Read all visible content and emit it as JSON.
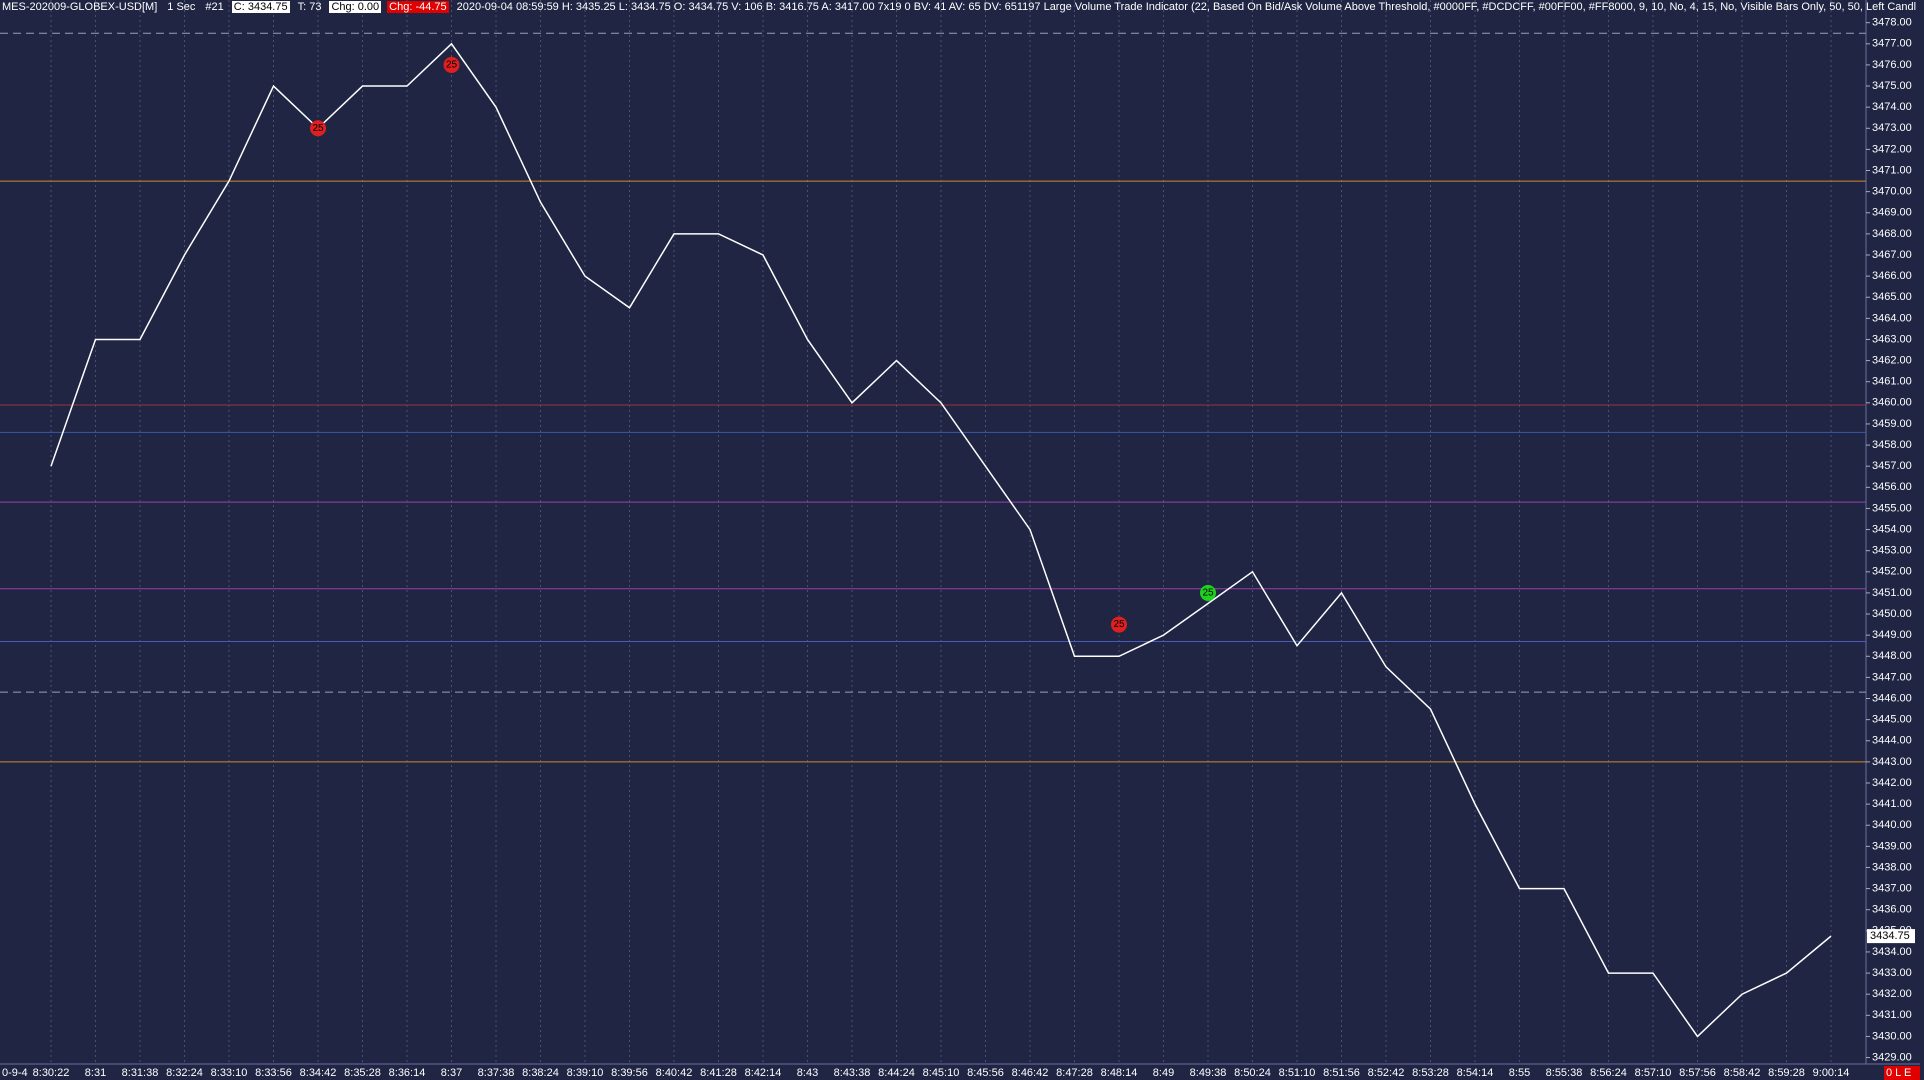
{
  "header": {
    "symbol": "MES-202009-GLOBEX-USD[M]",
    "interval": "1 Sec",
    "bar_no": "#21",
    "close": "C: 3434.75",
    "ticks": "T: 73",
    "change": "Chg: 0.00",
    "change_pct": "Chg: -44.75",
    "info": "2020-09-04 08:59:59 H: 3435.25 L: 3434.75 O: 3434.75 V: 106 B: 3416.75 A: 3417.00 7x19 0 BV: 41 AV: 65 DV: 651197 Large Volume Trade Indicator   (22, Based On Bid/Ask Volume Above Threshold, #0000FF, #DCDCFF, #00FF00, #FF8000, 9, 10, No, 4, 15, No, Visible Bars Only, 50, 50, Left Candl"
  },
  "footer": {
    "date_fragment": "0-9-4",
    "status": "0 L E"
  },
  "chart_data": {
    "type": "line",
    "x": [
      "8:30:22",
      "8:31",
      "8:31:38",
      "8:32:24",
      "8:33:10",
      "8:33:56",
      "8:34:42",
      "8:35:28",
      "8:36:14",
      "8:37",
      "8:37:38",
      "8:38:24",
      "8:39:10",
      "8:39:56",
      "8:40:42",
      "8:41:28",
      "8:42:14",
      "8:43",
      "8:43:38",
      "8:44:24",
      "8:45:10",
      "8:45:56",
      "8:46:42",
      "8:47:28",
      "8:48:14",
      "8:49",
      "8:49:38",
      "8:50:24",
      "8:51:10",
      "8:51:56",
      "8:52:42",
      "8:53:28",
      "8:54:14",
      "8:55",
      "8:55:38",
      "8:56:24",
      "8:57:10",
      "8:57:56",
      "8:58:42",
      "8:59:28",
      "9:00:14"
    ],
    "series": [
      {
        "color": "#ffffff",
        "values": [
          3457,
          3463,
          3463,
          3467,
          3470.5,
          3475,
          3473,
          3475,
          3475,
          3477,
          3474,
          3469.5,
          3466,
          3464.5,
          3468,
          3468,
          3467,
          3463,
          3460,
          3462,
          3460,
          3457,
          3454,
          3448,
          3448,
          3449,
          3450.5,
          3452,
          3448.5,
          3451,
          3447.5,
          3445.5,
          3441,
          3437,
          3437,
          3433,
          3433,
          3430,
          3432,
          3433,
          3434.75
        ]
      }
    ],
    "ylim": [
      3428.6,
      3478.6
    ],
    "yticks": [
      {
        "value": 3429,
        "label": "3429.00"
      },
      {
        "value": 3430,
        "label": "3430.00"
      },
      {
        "value": 3431,
        "label": "3431.00"
      },
      {
        "value": 3432,
        "label": "3432.00"
      },
      {
        "value": 3433,
        "label": "3433.00"
      },
      {
        "value": 3434,
        "label": "3434.00"
      },
      {
        "value": 3435,
        "label": "3435.00"
      },
      {
        "value": 3436,
        "label": "3436.00"
      },
      {
        "value": 3437,
        "label": "3437.00"
      },
      {
        "value": 3438,
        "label": "3438.00"
      },
      {
        "value": 3439,
        "label": "3439.00"
      },
      {
        "value": 3440,
        "label": "3440.00"
      },
      {
        "value": 3441,
        "label": "3441.00"
      },
      {
        "value": 3442,
        "label": "3442.00"
      },
      {
        "value": 3443,
        "label": "3443.00"
      },
      {
        "value": 3444,
        "label": "3444.00"
      },
      {
        "value": 3445,
        "label": "3445.00"
      },
      {
        "value": 3446,
        "label": "3446.00"
      },
      {
        "value": 3447,
        "label": "3447.00"
      },
      {
        "value": 3448,
        "label": "3448.00"
      },
      {
        "value": 3449,
        "label": "3449.00"
      },
      {
        "value": 3450,
        "label": "3450.00"
      },
      {
        "value": 3451,
        "label": "3451.00"
      },
      {
        "value": 3452,
        "label": "3452.00"
      },
      {
        "value": 3453,
        "label": "3453.00"
      },
      {
        "value": 3454,
        "label": "3454.00"
      },
      {
        "value": 3455,
        "label": "3455.00"
      },
      {
        "value": 3456,
        "label": "3456.00"
      },
      {
        "value": 3457,
        "label": "3457.00"
      },
      {
        "value": 3458,
        "label": "3458.00"
      },
      {
        "value": 3459,
        "label": "3459.00"
      },
      {
        "value": 3460,
        "label": "3460.00"
      },
      {
        "value": 3461,
        "label": "3461.00"
      },
      {
        "value": 3462,
        "label": "3462.00"
      },
      {
        "value": 3463,
        "label": "3463.00"
      },
      {
        "value": 3464,
        "label": "3464.00"
      },
      {
        "value": 3465,
        "label": "3465.00"
      },
      {
        "value": 3466,
        "label": "3466.00"
      },
      {
        "value": 3467,
        "label": "3467.00"
      },
      {
        "value": 3468,
        "label": "3468.00"
      },
      {
        "value": 3469,
        "label": "3469.00"
      },
      {
        "value": 3470,
        "label": "3470.00"
      },
      {
        "value": 3471,
        "label": "3471.00"
      },
      {
        "value": 3472,
        "label": "3472.00"
      },
      {
        "value": 3473,
        "label": "3473.00"
      },
      {
        "value": 3474,
        "label": "3474.00"
      },
      {
        "value": 3475,
        "label": "3475.00"
      },
      {
        "value": 3476,
        "label": "3476.00"
      },
      {
        "value": 3477,
        "label": "3477.00"
      },
      {
        "value": 3478,
        "label": "3478.00"
      }
    ],
    "last_price": {
      "value": 3434.75,
      "label": "3434.75"
    },
    "hlines": [
      {
        "value": 3477.5,
        "color": "#9aa0b8",
        "dashed": true
      },
      {
        "value": 3470.5,
        "color": "#d08a2a",
        "dashed": false
      },
      {
        "value": 3459.9,
        "color": "#a03040",
        "dashed": false
      },
      {
        "value": 3458.6,
        "color": "#3a5aa8",
        "dashed": false
      },
      {
        "value": 3455.3,
        "color": "#9a40b0",
        "dashed": false
      },
      {
        "value": 3451.2,
        "color": "#9a40b0",
        "dashed": false
      },
      {
        "value": 3448.7,
        "color": "#4a5ab8",
        "dashed": false
      },
      {
        "value": 3446.3,
        "color": "#9aa0b8",
        "dashed": true
      },
      {
        "value": 3443,
        "color": "#d08a2a",
        "dashed": false
      }
    ],
    "annotations": [
      {
        "text": "25",
        "x": "8:34:42",
        "y": 3473,
        "color": "#e02020"
      },
      {
        "text": "25",
        "x": "8:37",
        "y": 3476,
        "color": "#e02020"
      },
      {
        "text": "25",
        "x": "8:48:14",
        "y": 3449.5,
        "color": "#e02020"
      },
      {
        "text": "25",
        "x": "8:49:38",
        "y": 3451,
        "color": "#20d020"
      }
    ],
    "grid": true
  }
}
